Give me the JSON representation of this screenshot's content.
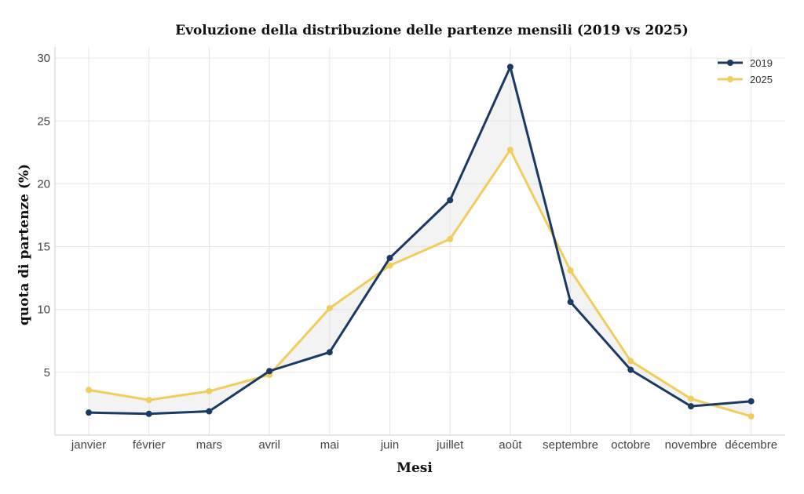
{
  "chart_data": {
    "type": "line",
    "title": "Evoluzione della distribuzione delle partenze mensili (2019 vs 2025)",
    "xlabel": "Mesi",
    "ylabel": "quota di partenze (%)",
    "categories": [
      "janvier",
      "février",
      "mars",
      "avril",
      "mai",
      "juin",
      "juillet",
      "août",
      "septembre",
      "octobre",
      "novembre",
      "décembre"
    ],
    "ylim": [
      0,
      30
    ],
    "yticks": [
      5,
      10,
      15,
      20,
      25,
      30
    ],
    "grid": true,
    "legend_position": "top-right",
    "shaded_between_series": true,
    "series": [
      {
        "name": "2019",
        "color": "#1b3a63",
        "values": [
          1.8,
          1.7,
          1.9,
          5.1,
          6.6,
          14.1,
          18.7,
          29.3,
          10.6,
          5.2,
          2.3,
          2.7
        ]
      },
      {
        "name": "2025",
        "color": "#f0cd5c",
        "values": [
          3.6,
          2.8,
          3.5,
          4.8,
          10.1,
          13.5,
          15.6,
          22.7,
          13.1,
          5.9,
          2.9,
          1.5
        ]
      }
    ]
  }
}
